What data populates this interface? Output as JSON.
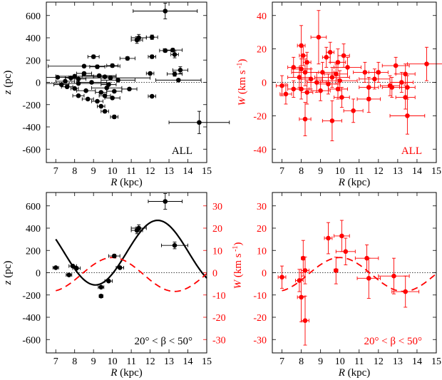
{
  "colors": {
    "black": "#000000",
    "red": "#ff0000"
  },
  "chart_data": [
    {
      "type": "scatter",
      "panel": "top-left",
      "annotation": "ALL",
      "xlabel_var": "R",
      "xlabel_unit": "(kpc)",
      "ylabel_var": "z",
      "ylabel_unit": "(pc)",
      "xlim": [
        6.5,
        15
      ],
      "ylim": [
        -720,
        720
      ],
      "xticks": [
        7,
        8,
        9,
        10,
        11,
        12,
        13,
        14,
        15
      ],
      "yticks": [
        -600,
        -400,
        -200,
        0,
        200,
        400,
        600
      ],
      "zero_line": "dotted",
      "color": "#000000",
      "points": [
        {
          "x": 12.8,
          "y": 640,
          "ex": 1.7,
          "ey": 70
        },
        {
          "x": 11.4,
          "y": 400,
          "ex": 0.4,
          "ey": 30
        },
        {
          "x": 11.3,
          "y": 380,
          "ex": 0.3,
          "ey": 30
        },
        {
          "x": 12.1,
          "y": 405,
          "ex": 0.3,
          "ey": 20
        },
        {
          "x": 13.2,
          "y": 290,
          "ex": 0.5,
          "ey": 15
        },
        {
          "x": 12.8,
          "y": 285,
          "ex": 0.3,
          "ey": 15
        },
        {
          "x": 13.3,
          "y": 250,
          "ex": 0.2,
          "ey": 30
        },
        {
          "x": 9.0,
          "y": 230,
          "ex": 0.3,
          "ey": 15
        },
        {
          "x": 10.8,
          "y": 215,
          "ex": 0.4,
          "ey": 15
        },
        {
          "x": 12.1,
          "y": 230,
          "ex": 0.2,
          "ey": 15
        },
        {
          "x": 8.5,
          "y": 145,
          "ex": 1.9,
          "ey": 10
        },
        {
          "x": 9.2,
          "y": 140,
          "ex": 0.4,
          "ey": 15
        },
        {
          "x": 10.0,
          "y": 150,
          "ex": 0.3,
          "ey": 15
        },
        {
          "x": 13.6,
          "y": 110,
          "ex": 0.4,
          "ey": 30
        },
        {
          "x": 13.3,
          "y": 75,
          "ex": 0.4,
          "ey": 20
        },
        {
          "x": 12.0,
          "y": 80,
          "ex": 0.2,
          "ey": 10
        },
        {
          "x": 7.1,
          "y": 45,
          "ex": 0.6,
          "ey": 8
        },
        {
          "x": 7.8,
          "y": 40,
          "ex": 0.3,
          "ey": 8
        },
        {
          "x": 8.0,
          "y": 55,
          "ex": 1.0,
          "ey": 8
        },
        {
          "x": 8.2,
          "y": 30,
          "ex": 0.4,
          "ey": 8
        },
        {
          "x": 8.5,
          "y": 80,
          "ex": 0.4,
          "ey": 10
        },
        {
          "x": 9.3,
          "y": 60,
          "ex": 0.9,
          "ey": 10
        },
        {
          "x": 9.6,
          "y": 50,
          "ex": 0.6,
          "ey": 10
        },
        {
          "x": 9.9,
          "y": 40,
          "ex": 2.1,
          "ey": 10
        },
        {
          "x": 10.3,
          "y": 20,
          "ex": 0.9,
          "ey": 10
        },
        {
          "x": 13.5,
          "y": 20,
          "ex": 1.2,
          "ey": 10
        },
        {
          "x": 7.5,
          "y": 10,
          "ex": 0.5,
          "ey": 8
        },
        {
          "x": 8.2,
          "y": -10,
          "ex": 1.7,
          "ey": 8
        },
        {
          "x": 8.9,
          "y": 0,
          "ex": 0.8,
          "ey": 8
        },
        {
          "x": 9.8,
          "y": -20,
          "ex": 0.4,
          "ey": 8
        },
        {
          "x": 7.3,
          "y": -20,
          "ex": 0.4,
          "ey": 8
        },
        {
          "x": 7.6,
          "y": -40,
          "ex": 0.3,
          "ey": 8
        },
        {
          "x": 8.0,
          "y": -55,
          "ex": 0.2,
          "ey": 8
        },
        {
          "x": 8.6,
          "y": -75,
          "ex": 0.5,
          "ey": 8
        },
        {
          "x": 9.4,
          "y": -90,
          "ex": 0.3,
          "ey": 8
        },
        {
          "x": 9.7,
          "y": -50,
          "ex": 0.8,
          "ey": 8
        },
        {
          "x": 10.1,
          "y": -80,
          "ex": 0.4,
          "ey": 8
        },
        {
          "x": 10.9,
          "y": -60,
          "ex": 0.4,
          "ey": 8
        },
        {
          "x": 8.7,
          "y": -150,
          "ex": 0.3,
          "ey": 8
        },
        {
          "x": 9.2,
          "y": -170,
          "ex": 0.3,
          "ey": 8
        },
        {
          "x": 9.6,
          "y": -120,
          "ex": 0.3,
          "ey": 8
        },
        {
          "x": 9.4,
          "y": -215,
          "ex": 0.2,
          "ey": 8
        },
        {
          "x": 9.6,
          "y": -260,
          "ex": 0.2,
          "ey": 10
        },
        {
          "x": 8.2,
          "y": -120,
          "ex": 0.3,
          "ey": 8
        },
        {
          "x": 10.0,
          "y": -140,
          "ex": 0.4,
          "ey": 10
        },
        {
          "x": 12.1,
          "y": -125,
          "ex": 0.2,
          "ey": 10
        },
        {
          "x": 10.1,
          "y": -310,
          "ex": 0.2,
          "ey": 15
        },
        {
          "x": 14.6,
          "y": -360,
          "ex": 1.6,
          "ey": 100
        }
      ]
    },
    {
      "type": "scatter",
      "panel": "top-right",
      "annotation": "ALL",
      "xlabel_var": "R",
      "xlabel_unit": "(kpc)",
      "ylabel_var": "W",
      "ylabel_unit": "(km s",
      "ylabel_sup": "-1",
      "ylabel_close": ")",
      "xlim": [
        6.5,
        15
      ],
      "ylim": [
        -48,
        48
      ],
      "xticks": [
        7,
        8,
        9,
        10,
        11,
        12,
        13,
        14,
        15
      ],
      "yticks": [
        -40,
        -20,
        0,
        20,
        40
      ],
      "zero_line": "dotted",
      "color": "#ff0000",
      "points": [
        {
          "x": 8.9,
          "y": 27,
          "ex": 0.4,
          "ey": 16
        },
        {
          "x": 8.0,
          "y": 22,
          "ex": 0.2,
          "ey": 12
        },
        {
          "x": 9.5,
          "y": 18,
          "ex": 0.2,
          "ey": 6
        },
        {
          "x": 8.1,
          "y": 16,
          "ex": 0.2,
          "ey": 6
        },
        {
          "x": 9.3,
          "y": 15,
          "ex": 0.2,
          "ey": 6
        },
        {
          "x": 8.3,
          "y": 12,
          "ex": 0.2,
          "ey": 6
        },
        {
          "x": 10.2,
          "y": 16,
          "ex": 0.3,
          "ey": 7
        },
        {
          "x": 9.9,
          "y": 12,
          "ex": 0.4,
          "ey": 8
        },
        {
          "x": 14.5,
          "y": 11,
          "ex": 1.0,
          "ey": 10
        },
        {
          "x": 12.9,
          "y": 10,
          "ex": 0.7,
          "ey": 5
        },
        {
          "x": 7.6,
          "y": 9,
          "ex": 0.3,
          "ey": 6
        },
        {
          "x": 8.0,
          "y": 8,
          "ex": 0.5,
          "ey": 6
        },
        {
          "x": 8.2,
          "y": 6,
          "ex": 0.7,
          "ey": 8
        },
        {
          "x": 9.1,
          "y": 6,
          "ex": 0.6,
          "ey": 6
        },
        {
          "x": 9.8,
          "y": 5,
          "ex": 0.6,
          "ey": 6
        },
        {
          "x": 10.4,
          "y": 9,
          "ex": 0.7,
          "ey": 6
        },
        {
          "x": 11.3,
          "y": 6,
          "ex": 0.6,
          "ey": 6
        },
        {
          "x": 12.0,
          "y": 6,
          "ex": 0.5,
          "ey": 6
        },
        {
          "x": 13.4,
          "y": 5,
          "ex": 0.5,
          "ey": 6
        },
        {
          "x": 7.9,
          "y": 3,
          "ex": 0.6,
          "ey": 6
        },
        {
          "x": 8.5,
          "y": 2,
          "ex": 0.6,
          "ey": 6
        },
        {
          "x": 9.6,
          "y": 3,
          "ex": 0.9,
          "ey": 6
        },
        {
          "x": 10.0,
          "y": 1,
          "ex": 0.9,
          "ey": 6
        },
        {
          "x": 8.8,
          "y": 0,
          "ex": 0.5,
          "ey": 6
        },
        {
          "x": 9.4,
          "y": -1,
          "ex": 0.6,
          "ey": 6
        },
        {
          "x": 11.8,
          "y": 2,
          "ex": 0.8,
          "ey": 6
        },
        {
          "x": 12.6,
          "y": -2,
          "ex": 0.5,
          "ey": 6
        },
        {
          "x": 13.2,
          "y": 0,
          "ex": 0.6,
          "ey": 6
        },
        {
          "x": 7.0,
          "y": -2,
          "ex": 0.3,
          "ey": 6
        },
        {
          "x": 7.2,
          "y": -7,
          "ex": 0.3,
          "ey": 6
        },
        {
          "x": 7.6,
          "y": -4,
          "ex": 0.3,
          "ey": 5
        },
        {
          "x": 8.0,
          "y": -4,
          "ex": 0.4,
          "ey": 6
        },
        {
          "x": 8.3,
          "y": -6,
          "ex": 0.3,
          "ey": 7
        },
        {
          "x": 9.0,
          "y": -5,
          "ex": 0.5,
          "ey": 6
        },
        {
          "x": 9.9,
          "y": -4,
          "ex": 0.5,
          "ey": 6
        },
        {
          "x": 10.1,
          "y": -9,
          "ex": 0.4,
          "ey": 6
        },
        {
          "x": 11.5,
          "y": -3,
          "ex": 0.5,
          "ey": 6
        },
        {
          "x": 12.7,
          "y": -3,
          "ex": 0.5,
          "ey": 6
        },
        {
          "x": 13.5,
          "y": -3,
          "ex": 0.4,
          "ey": 7
        },
        {
          "x": 10.7,
          "y": -17,
          "ex": 0.5,
          "ey": 7
        },
        {
          "x": 8.2,
          "y": -22,
          "ex": 0.3,
          "ey": 10
        },
        {
          "x": 9.6,
          "y": -23,
          "ex": 0.5,
          "ey": 12
        },
        {
          "x": 11.5,
          "y": -10,
          "ex": 0.6,
          "ey": 8
        },
        {
          "x": 13.4,
          "y": -9,
          "ex": 0.5,
          "ey": 7
        },
        {
          "x": 13.5,
          "y": -20,
          "ex": 0.9,
          "ey": 11
        }
      ]
    },
    {
      "type": "scatter",
      "panel": "bottom-left",
      "annotation": "20° < β < 50°",
      "xlabel_var": "R",
      "xlabel_unit": "(kpc)",
      "ylabel_var": "z",
      "ylabel_unit": "(pc)",
      "ylabel2_var": "W",
      "ylabel2_unit": "(km s",
      "ylabel2_sup": "-1",
      "ylabel2_close": ")",
      "xlim": [
        6.5,
        15
      ],
      "ylim": [
        -720,
        720
      ],
      "y2lim": [
        -36,
        36
      ],
      "xticks": [
        7,
        8,
        9,
        10,
        11,
        12,
        13,
        14,
        15
      ],
      "yticks": [
        -600,
        -400,
        -200,
        0,
        200,
        400,
        600
      ],
      "y2ticks": [
        -30,
        -20,
        -10,
        0,
        10,
        20,
        30
      ],
      "zero_line": "dotted",
      "color": "#000000",
      "points": [
        {
          "x": 12.8,
          "y": 640,
          "ex": 0.9,
          "ey": 70
        },
        {
          "x": 11.4,
          "y": 400,
          "ex": 0.4,
          "ey": 30
        },
        {
          "x": 11.3,
          "y": 380,
          "ex": 0.3,
          "ey": 30
        },
        {
          "x": 13.3,
          "y": 245,
          "ex": 0.7,
          "ey": 30
        },
        {
          "x": 10.1,
          "y": 150,
          "ex": 0.3,
          "ey": 15
        },
        {
          "x": 10.4,
          "y": 45,
          "ex": 0.2,
          "ey": 8
        },
        {
          "x": 7.0,
          "y": 45,
          "ex": 0.15,
          "ey": 8
        },
        {
          "x": 7.9,
          "y": 60,
          "ex": 0.2,
          "ey": 8
        },
        {
          "x": 8.1,
          "y": 40,
          "ex": 0.2,
          "ey": 8
        },
        {
          "x": 7.7,
          "y": -20,
          "ex": 0.15,
          "ey": 8
        },
        {
          "x": 9.8,
          "y": -75,
          "ex": 0.2,
          "ey": 8
        },
        {
          "x": 9.4,
          "y": -130,
          "ex": 0.15,
          "ey": 8
        },
        {
          "x": 9.4,
          "y": -210,
          "ex": 0.1,
          "ey": 8
        }
      ],
      "curves": [
        {
          "style": "solid",
          "color": "#000000",
          "axis": "left",
          "x_from": 7.0,
          "x_to": 15.0,
          "amp": 290,
          "offset": 180,
          "period": 6.6,
          "peak_x": 12.4
        },
        {
          "style": "dashed",
          "color": "#ff0000",
          "axis": "right",
          "x_from": 7.0,
          "x_to": 15.0,
          "amp": 7.6,
          "offset": -0.8,
          "period": 6.6,
          "peak_x": 10.0
        }
      ]
    },
    {
      "type": "scatter",
      "panel": "bottom-right",
      "annotation": "20° < β < 50°",
      "xlabel_var": "R",
      "xlabel_unit": "(kpc)",
      "xlim": [
        6.5,
        15
      ],
      "ylim": [
        -36,
        36
      ],
      "xticks": [
        7,
        8,
        9,
        10,
        11,
        12,
        13,
        14,
        15
      ],
      "yticks": [
        -30,
        -20,
        -10,
        0,
        10,
        20,
        30
      ],
      "zero_line": "dotted",
      "color": "#ff0000",
      "points": [
        {
          "x": 10.1,
          "y": 16.5,
          "ex": 0.4,
          "ey": 7
        },
        {
          "x": 9.4,
          "y": 15.5,
          "ex": 0.2,
          "ey": 7
        },
        {
          "x": 10.3,
          "y": 9.5,
          "ex": 0.5,
          "ey": 6
        },
        {
          "x": 11.4,
          "y": 6.5,
          "ex": 0.6,
          "ey": 6
        },
        {
          "x": 8.1,
          "y": 6.5,
          "ex": 0.1,
          "ey": 8
        },
        {
          "x": 9.8,
          "y": 1.0,
          "ex": 0.1,
          "ey": 6
        },
        {
          "x": 8.2,
          "y": 1.0,
          "ex": 0.2,
          "ey": 6
        },
        {
          "x": 7.0,
          "y": -2.0,
          "ex": 0.2,
          "ey": 5
        },
        {
          "x": 12.8,
          "y": -1.5,
          "ex": 0.8,
          "ey": 8
        },
        {
          "x": 11.5,
          "y": -2.5,
          "ex": 0.6,
          "ey": 9
        },
        {
          "x": 7.9,
          "y": -3.5,
          "ex": 0.2,
          "ey": 5
        },
        {
          "x": 13.4,
          "y": -8.5,
          "ex": 0.7,
          "ey": 7
        },
        {
          "x": 8.0,
          "y": -11.0,
          "ex": 0.2,
          "ey": 11
        },
        {
          "x": 8.2,
          "y": -21.5,
          "ex": 0.2,
          "ey": 11
        }
      ],
      "curves": [
        {
          "style": "dashed",
          "color": "#ff0000",
          "axis": "left",
          "x_from": 7.0,
          "x_to": 15.0,
          "amp": 7.6,
          "offset": -0.8,
          "period": 6.6,
          "peak_x": 10.0
        }
      ]
    }
  ]
}
